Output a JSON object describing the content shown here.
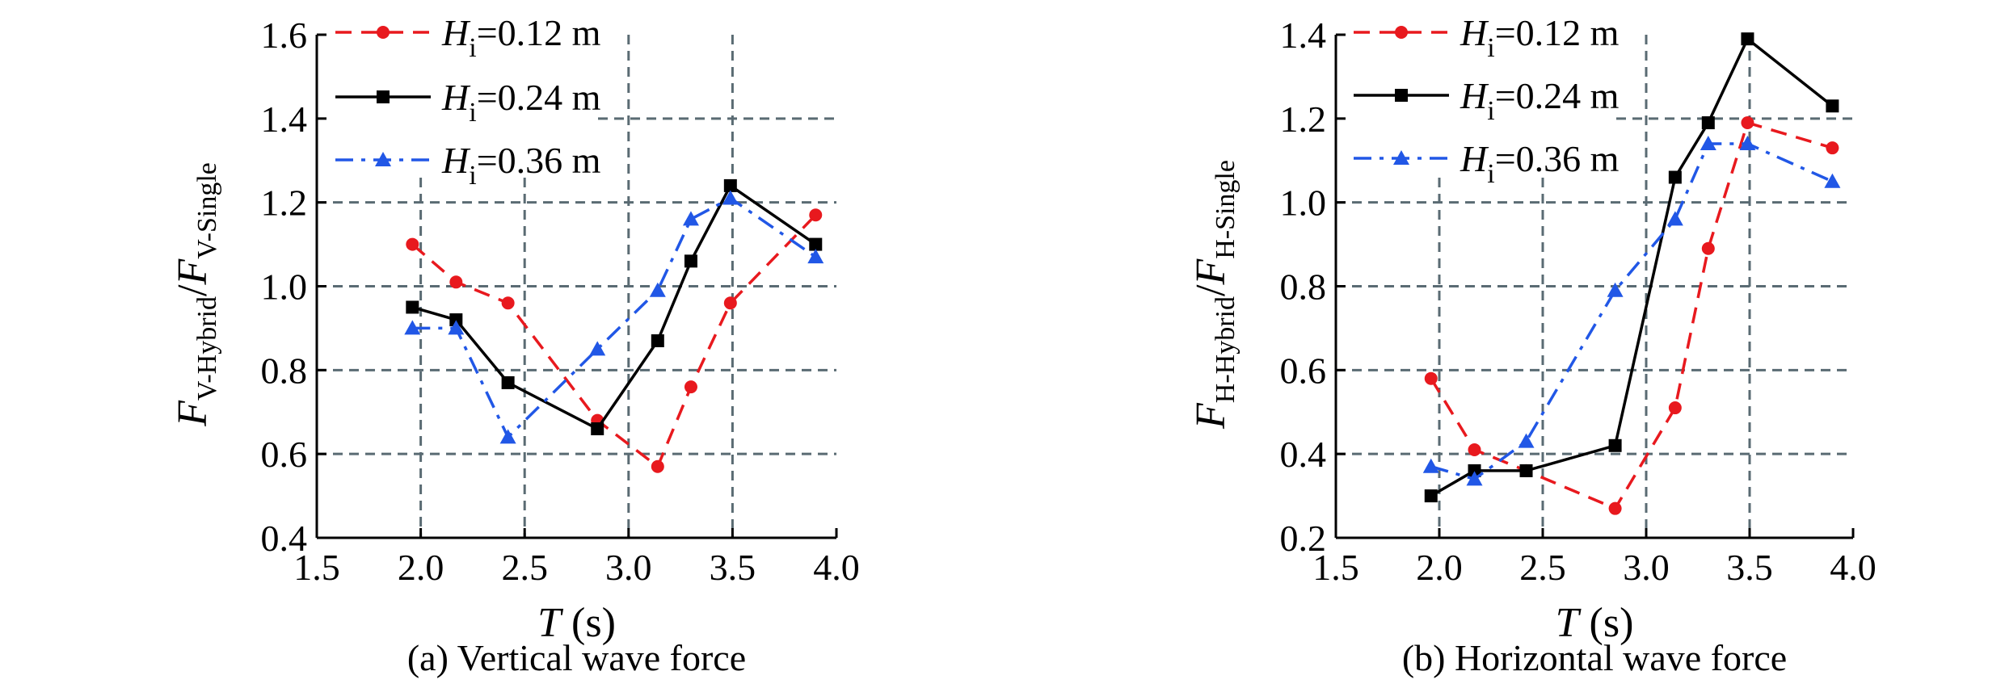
{
  "chart_data": [
    {
      "type": "line",
      "caption": "(a) Vertical wave force",
      "xlabel": {
        "main": "T",
        "unit": " (s)"
      },
      "ylabel": {
        "a": "F",
        "a_sub": "V-Hybrid",
        "sep": "/",
        "b": "F",
        "b_sub": "V-Single"
      },
      "xlim": [
        1.5,
        4.0
      ],
      "ylim": [
        0.4,
        1.6
      ],
      "xticks": [
        "1.5",
        "2.0",
        "2.5",
        "3.0",
        "3.5",
        "4.0"
      ],
      "yticks": [
        "0.4",
        "0.6",
        "0.8",
        "1.0",
        "1.2",
        "1.4",
        "1.6"
      ],
      "grid": "dashed",
      "legend_position": "top-left",
      "series": [
        {
          "name": "0.12 m",
          "name_prefix": "H",
          "name_sub": "i",
          "color": "#e8191e",
          "marker": "circle",
          "dash": "dashed",
          "x": [
            1.96,
            2.17,
            2.42,
            2.85,
            3.14,
            3.3,
            3.49,
            3.9
          ],
          "y": [
            1.1,
            1.01,
            0.96,
            0.68,
            0.57,
            0.76,
            0.96,
            1.17
          ]
        },
        {
          "name": "0.24 m",
          "name_prefix": "H",
          "name_sub": "i",
          "color": "#000000",
          "marker": "square",
          "dash": "solid",
          "x": [
            1.96,
            2.17,
            2.42,
            2.85,
            3.14,
            3.3,
            3.49,
            3.9
          ],
          "y": [
            0.95,
            0.92,
            0.77,
            0.66,
            0.87,
            1.06,
            1.24,
            1.1
          ]
        },
        {
          "name": "0.36 m",
          "name_prefix": "H",
          "name_sub": "i",
          "color": "#2157e6",
          "marker": "triangle",
          "dash": "dashdot",
          "x": [
            1.96,
            2.17,
            2.42,
            2.85,
            3.14,
            3.3,
            3.49,
            3.9
          ],
          "y": [
            0.9,
            0.9,
            0.64,
            0.85,
            0.99,
            1.16,
            1.21,
            1.07
          ]
        }
      ]
    },
    {
      "type": "line",
      "caption": "(b) Horizontal wave force",
      "xlabel": {
        "main": "T",
        "unit": " (s)"
      },
      "ylabel": {
        "a": "F",
        "a_sub": "H-Hybrid",
        "sep": "/",
        "b": "F",
        "b_sub": "H-Single"
      },
      "xlim": [
        1.5,
        4.0
      ],
      "ylim": [
        0.2,
        1.4
      ],
      "xticks": [
        "1.5",
        "2.0",
        "2.5",
        "3.0",
        "3.5",
        "4.0"
      ],
      "yticks": [
        "0.2",
        "0.4",
        "0.6",
        "0.8",
        "1.0",
        "1.2",
        "1.4"
      ],
      "grid": "dashed",
      "legend_position": "top-left",
      "series": [
        {
          "name": "0.12 m",
          "name_prefix": "H",
          "name_sub": "i",
          "color": "#e8191e",
          "marker": "circle",
          "dash": "dashed",
          "x": [
            1.96,
            2.17,
            2.42,
            2.85,
            3.14,
            3.3,
            3.49,
            3.9
          ],
          "y": [
            0.58,
            0.41,
            0.36,
            0.27,
            0.51,
            0.89,
            1.19,
            1.13
          ]
        },
        {
          "name": "0.24 m",
          "name_prefix": "H",
          "name_sub": "i",
          "color": "#000000",
          "marker": "square",
          "dash": "solid",
          "x": [
            1.96,
            2.17,
            2.42,
            2.85,
            3.14,
            3.3,
            3.49,
            3.9
          ],
          "y": [
            0.3,
            0.36,
            0.36,
            0.42,
            1.06,
            1.19,
            1.39,
            1.23
          ]
        },
        {
          "name": "0.36 m",
          "name_prefix": "H",
          "name_sub": "i",
          "color": "#2157e6",
          "marker": "triangle",
          "dash": "dashdot",
          "x": [
            1.96,
            2.17,
            2.42,
            2.85,
            3.14,
            3.3,
            3.49,
            3.9
          ],
          "y": [
            0.37,
            0.34,
            0.43,
            0.79,
            0.96,
            1.14,
            1.14,
            1.05
          ]
        }
      ]
    }
  ]
}
